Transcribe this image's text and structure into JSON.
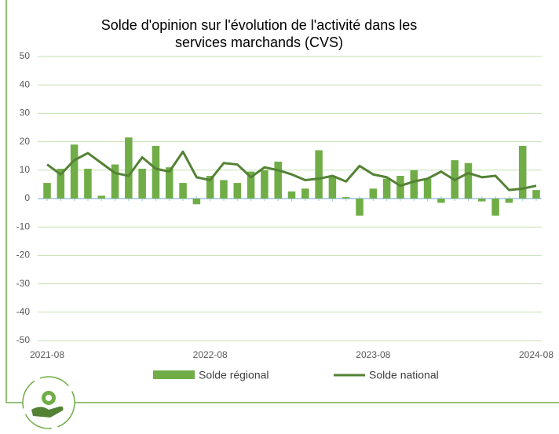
{
  "chart_data": {
    "type": "bar-line",
    "title": [
      "Solde d'opinion sur l'évolution de l'activité dans les",
      "services marchands (CVS)"
    ],
    "categories": [
      "2021-08",
      null,
      null,
      null,
      null,
      null,
      null,
      null,
      null,
      null,
      null,
      null,
      "2022-08",
      null,
      null,
      null,
      null,
      null,
      null,
      null,
      null,
      null,
      null,
      null,
      "2023-08",
      null,
      null,
      null,
      null,
      null,
      null,
      null,
      null,
      null,
      null,
      null,
      "2024-08"
    ],
    "series": [
      {
        "name": "Solde régional",
        "kind": "bar",
        "color": "#70ad47",
        "values": [
          5.5,
          10.5,
          19,
          10.5,
          1,
          12,
          21.5,
          10.5,
          18.5,
          11,
          5.5,
          -2,
          8,
          6.5,
          5.5,
          9.5,
          10,
          13,
          2.5,
          3.5,
          17,
          8,
          0.5,
          -6,
          3.5,
          7,
          8,
          10,
          7,
          -1.5,
          13.5,
          12.5,
          -1,
          -6,
          -1.5,
          18.5,
          3
        ]
      },
      {
        "name": "Solde national",
        "kind": "line",
        "color": "#548235",
        "values": [
          12,
          8.5,
          13.5,
          16,
          12.5,
          9,
          8,
          14.5,
          10.5,
          9.5,
          16.5,
          7.5,
          6.5,
          12.5,
          12,
          7.5,
          11,
          10,
          8.5,
          6.5,
          7,
          8,
          6,
          11.5,
          8.5,
          7.5,
          4.5,
          6,
          7,
          9.5,
          6.5,
          9,
          7.5,
          8,
          3,
          3.5,
          4.5
        ]
      }
    ],
    "ylim": [
      -50,
      50
    ],
    "yticks": [
      -50,
      -40,
      -30,
      -20,
      -10,
      0,
      10,
      20,
      30,
      40,
      50
    ],
    "grid": true
  }
}
